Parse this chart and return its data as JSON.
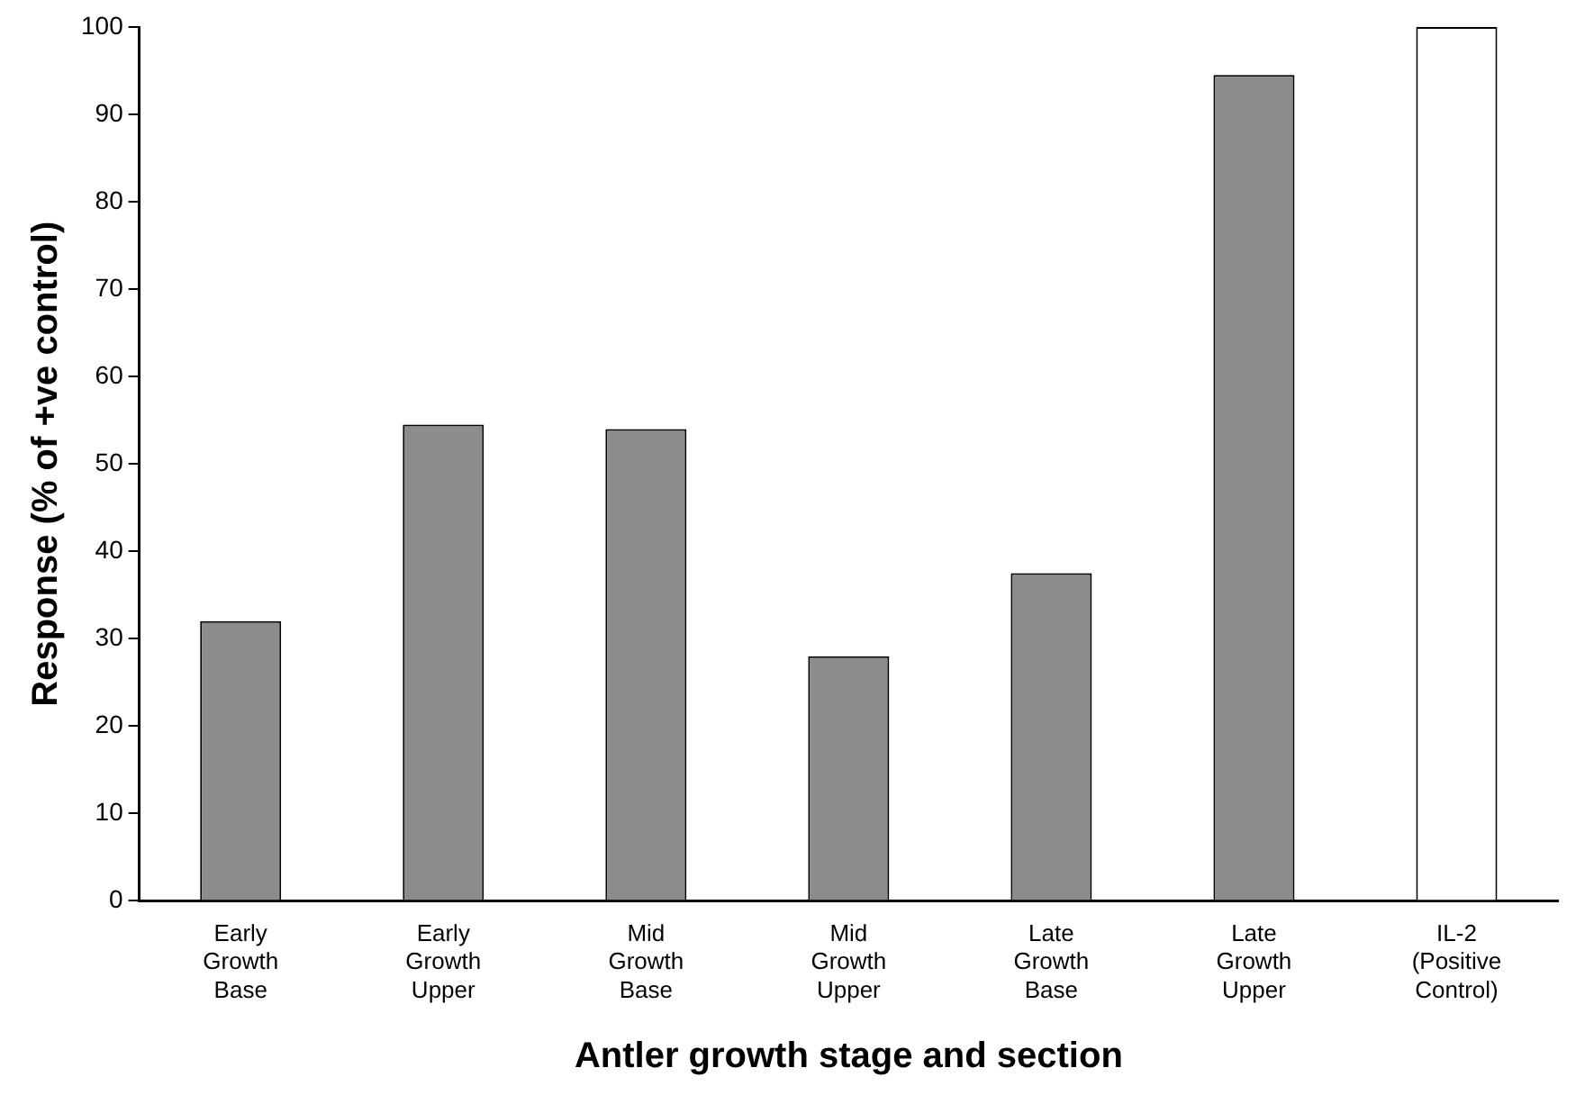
{
  "chart_data": {
    "type": "bar",
    "xlabel": "Antler growth stage and section",
    "ylabel": "Response (% of +ve control)",
    "categories": [
      "Early Growth Base",
      "Early Growth Upper",
      "Mid Growth Base",
      "Mid Growth Upper",
      "Late Growth Base",
      "Late Growth Upper",
      "IL-2 (Positive Control)"
    ],
    "values": [
      32,
      54.5,
      54,
      28,
      37.5,
      94.5,
      100
    ],
    "colors": [
      "#8c8c8c",
      "#8c8c8c",
      "#8c8c8c",
      "#8c8c8c",
      "#8c8c8c",
      "#8c8c8c",
      "#ffffff"
    ],
    "ylim": [
      0,
      100
    ],
    "yticks": [
      0,
      10,
      20,
      30,
      40,
      50,
      60,
      70,
      80,
      90,
      100
    ],
    "grid": false,
    "legend": false
  }
}
